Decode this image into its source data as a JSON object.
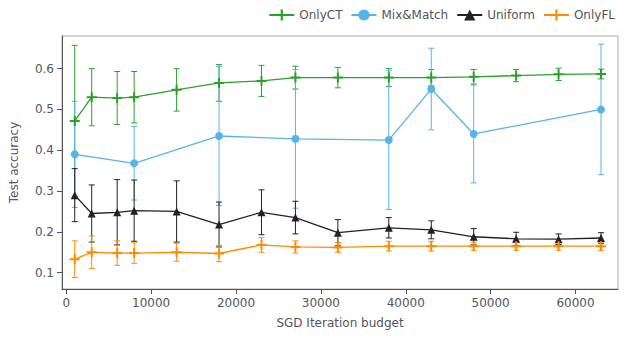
{
  "chart_data": {
    "type": "line",
    "xlabel": "SGD Iteration budget",
    "ylabel": "Test accuracy",
    "x": [
      1000,
      3000,
      6000,
      8000,
      13000,
      18000,
      23000,
      27000,
      32000,
      38000,
      43000,
      48000,
      53000,
      58000,
      63000
    ],
    "series": [
      {
        "name": "OnlyCT",
        "color": "#2ca02c",
        "marker": "+",
        "values": [
          0.472,
          0.53,
          0.528,
          0.53,
          0.548,
          0.565,
          0.57,
          0.578,
          0.578,
          0.578,
          0.578,
          0.58,
          0.583,
          0.586,
          0.587
        ],
        "yerr": [
          0.185,
          0.07,
          0.065,
          0.063,
          0.052,
          0.045,
          0.038,
          0.028,
          0.025,
          0.022,
          0.02,
          0.018,
          0.015,
          0.015,
          0.012
        ]
      },
      {
        "name": "Mix&Match",
        "color": "#56b4e9",
        "marker": "o",
        "x": [
          1000,
          8000,
          18000,
          27000,
          38000,
          43000,
          48000,
          63000
        ],
        "values": [
          0.39,
          0.368,
          0.435,
          0.428,
          0.425,
          0.55,
          0.44,
          0.5
        ],
        "yerr": [
          0.13,
          0.09,
          0.17,
          0.17,
          0.17,
          0.1,
          0.12,
          0.16
        ]
      },
      {
        "name": "Uniform",
        "color": "#222222",
        "marker": "^",
        "values": [
          0.29,
          0.245,
          0.248,
          0.252,
          0.25,
          0.218,
          0.248,
          0.235,
          0.198,
          0.21,
          0.205,
          0.188,
          0.183,
          0.182,
          0.185
        ],
        "yerr": [
          0.065,
          0.07,
          0.08,
          0.075,
          0.075,
          0.055,
          0.055,
          0.04,
          0.032,
          0.025,
          0.022,
          0.02,
          0.016,
          0.013,
          0.013
        ]
      },
      {
        "name": "OnlyFL",
        "color": "#ff8c00",
        "marker": "+",
        "values": [
          0.133,
          0.15,
          0.148,
          0.148,
          0.15,
          0.147,
          0.168,
          0.163,
          0.162,
          0.165,
          0.165,
          0.165,
          0.165,
          0.165,
          0.165
        ],
        "yerr": [
          0.045,
          0.04,
          0.03,
          0.025,
          0.022,
          0.02,
          0.018,
          0.015,
          0.012,
          0.012,
          0.012,
          0.01,
          0.01,
          0.01,
          0.01
        ]
      }
    ],
    "xlim": [
      -500,
      65000
    ],
    "ylim": [
      0.06,
      0.68
    ],
    "xticks": [
      0,
      10000,
      20000,
      30000,
      40000,
      50000,
      60000
    ],
    "yticks": [
      0.1,
      0.2,
      0.3,
      0.4,
      0.5,
      0.6
    ],
    "grid": false,
    "legend": "upper right"
  }
}
